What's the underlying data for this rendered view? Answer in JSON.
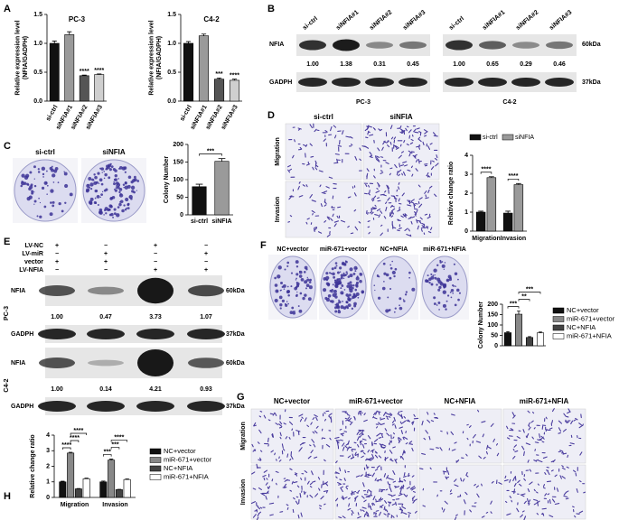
{
  "panel_letters": [
    "A",
    "B",
    "C",
    "D",
    "E",
    "F",
    "G",
    "H"
  ],
  "chart_data": [
    {
      "type": "bar",
      "title": "PC-3",
      "y_label": [
        "Relative expression level",
        "(NFIA/GADPH)"
      ],
      "categories": [
        "si-ctrl",
        "siNFIA#1",
        "siNFIA#2",
        "siNFIA#3"
      ],
      "values": [
        1.0,
        1.15,
        0.44,
        0.46
      ],
      "errors": [
        0.04,
        0.05,
        0.01,
        0.01
      ],
      "colors": [
        "#111111",
        "#9a9a9a",
        "#555555",
        "#cfcfcf"
      ],
      "significance": [
        null,
        null,
        "****",
        "****"
      ],
      "ylim": [
        0,
        1.5
      ],
      "yticks": [
        {
          "value": 0,
          "label": "0.0"
        },
        0.5,
        {
          "value": 1,
          "label": "1.0"
        },
        1.5
      ]
    },
    {
      "type": "bar",
      "title": "C4-2",
      "y_label": [
        "Relative expression level",
        "(NFIA/GADPH)"
      ],
      "categories": [
        "si-ctrl",
        "siNFIA#1",
        "siNFIA#2",
        "siNFIA#3"
      ],
      "values": [
        1.0,
        1.13,
        0.38,
        0.36
      ],
      "errors": [
        0.03,
        0.03,
        0.02,
        0.02
      ],
      "colors": [
        "#111111",
        "#9a9a9a",
        "#555555",
        "#cfcfcf"
      ],
      "significance": [
        null,
        null,
        "***",
        "****"
      ],
      "ylim": [
        0,
        1.5
      ],
      "yticks": [
        {
          "value": 0,
          "label": "0.0"
        },
        0.5,
        {
          "value": 1,
          "label": "1.0"
        },
        1.5
      ]
    },
    {
      "type": "bar",
      "y_label": [
        "Colony Number"
      ],
      "categories": [
        "si-ctrl",
        "siNFIA"
      ],
      "values": [
        80,
        152
      ],
      "errors": [
        7,
        8
      ],
      "colors": [
        "#111111",
        "#9a9a9a"
      ],
      "brackets": [
        {
          "text": "***",
          "bars": [
            0,
            1
          ]
        }
      ],
      "ylim": [
        0,
        200
      ],
      "yticks": [
        0,
        50,
        100,
        150,
        200
      ]
    },
    {
      "type": "grouped_bar",
      "y_label": [
        "Relative change ratio"
      ],
      "categories": [
        "Migration",
        "Invasion"
      ],
      "series": [
        {
          "name": "si-ctrl",
          "color": "#111111",
          "values": [
            1.0,
            0.95
          ],
          "errors": [
            0.05,
            0.1
          ]
        },
        {
          "name": "siNFIA",
          "color": "#9a9a9a",
          "values": [
            2.82,
            2.45
          ],
          "errors": [
            0.05,
            0.06
          ]
        }
      ],
      "brackets": [
        {
          "text": "****",
          "category": 0,
          "bars": [
            0,
            1
          ]
        },
        {
          "text": "****",
          "category": 1,
          "bars": [
            0,
            1
          ]
        }
      ],
      "legend": "top",
      "ylim": [
        0,
        4
      ],
      "yticks": [
        0,
        1,
        2,
        3,
        4
      ]
    },
    {
      "type": "bar",
      "y_label": [
        "Colony Number"
      ],
      "categories": [
        "NC+vector",
        "miR-671+vector",
        "NC+NFIA",
        "miR-671+NFIA"
      ],
      "values": [
        63,
        152,
        40,
        62
      ],
      "errors": [
        5,
        15,
        4,
        4
      ],
      "colors": [
        "#111111",
        "#888888",
        "#444444",
        "#ffffff"
      ],
      "brackets": [
        {
          "text": "***",
          "bars": [
            0,
            1
          ]
        },
        {
          "text": "**",
          "bars": [
            1,
            2
          ]
        },
        {
          "text": "***",
          "bars": [
            1,
            3
          ]
        }
      ],
      "legend": "right",
      "ylim": [
        0,
        200
      ],
      "yticks": [
        0,
        50,
        100,
        150,
        200
      ]
    },
    {
      "type": "grouped_bar",
      "y_label": [
        "Relative change ratio"
      ],
      "categories": [
        "Migration",
        "Invasion"
      ],
      "series": [
        {
          "name": "NC+vector",
          "color": "#111111",
          "values": [
            1.0,
            1.0
          ],
          "errors": [
            0.04,
            0.05
          ]
        },
        {
          "name": "miR-671+vector",
          "color": "#888888",
          "values": [
            2.85,
            2.4
          ],
          "errors": [
            0.05,
            0.06
          ]
        },
        {
          "name": "NC+NFIA",
          "color": "#444444",
          "values": [
            0.55,
            0.5
          ],
          "errors": [
            0.02,
            0.02
          ]
        },
        {
          "name": "miR-671+NFIA",
          "color": "#ffffff",
          "values": [
            1.2,
            1.15
          ],
          "errors": [
            0.04,
            0.04
          ]
        }
      ],
      "brackets": [
        {
          "text": "****",
          "category": 0,
          "bars": [
            0,
            1
          ]
        },
        {
          "text": "****",
          "category": 0,
          "bars": [
            1,
            2
          ]
        },
        {
          "text": "****",
          "category": 0,
          "bars": [
            1,
            3
          ]
        },
        {
          "text": "***",
          "category": 1,
          "bars": [
            0,
            1
          ]
        },
        {
          "text": "***",
          "category": 1,
          "bars": [
            1,
            2
          ]
        },
        {
          "text": "****",
          "category": 1,
          "bars": [
            1,
            3
          ]
        }
      ],
      "legend": "right",
      "ylim": [
        0,
        4
      ],
      "yticks": [
        0,
        1,
        2,
        3,
        4
      ]
    }
  ],
  "blot_b": {
    "protein_labels": [
      "NFIA",
      "GADPH"
    ],
    "size_labels": [
      "60kDa",
      "37kDa"
    ],
    "blots": [
      {
        "cell_line": "PC-3",
        "lanes": [
          "si-ctrl",
          "siNFIA#1",
          "siNFIA#2",
          "siNFIA#3"
        ],
        "ratios": [
          "1.00",
          "1.38",
          "0.31",
          "0.45"
        ]
      },
      {
        "cell_line": "C4-2",
        "lanes": [
          "si-ctrl",
          "siNFIA#1",
          "siNFIA#2",
          "siNFIA#3"
        ],
        "ratios": [
          "1.00",
          "0.65",
          "0.29",
          "0.46"
        ]
      }
    ]
  },
  "plates_c": {
    "labels": [
      "si-ctrl",
      "siNFIA"
    ]
  },
  "images_d": {
    "columns": [
      "si-ctrl",
      "siNFIA"
    ],
    "rows": [
      "Migration",
      "Invasion"
    ]
  },
  "blot_e": {
    "conditions": [
      "LV-NC",
      "LV-miR",
      "vector",
      "LV-NFIA"
    ],
    "signs": [
      [
        "+",
        "−",
        "+",
        "−"
      ],
      [
        "−",
        "+",
        "−",
        "+"
      ],
      [
        "+",
        "+",
        "−",
        "−"
      ],
      [
        "−",
        "−",
        "+",
        "+"
      ]
    ],
    "protein_labels": [
      "NFIA",
      "GADPH"
    ],
    "size_labels": [
      "60kDa",
      "37kDa"
    ],
    "blots": [
      {
        "cell_line": "PC-3",
        "ratios": [
          "1.00",
          "0.47",
          "3.73",
          "1.07"
        ]
      },
      {
        "cell_line": "C4-2",
        "ratios": [
          "1.00",
          "0.14",
          "4.21",
          "0.93"
        ]
      }
    ]
  },
  "plates_f": {
    "labels": [
      "NC+vector",
      "miR-671+vector",
      "NC+NFIA",
      "miR-671+NFIA"
    ]
  },
  "images_g": {
    "columns": [
      "NC+vector",
      "miR-671+vector",
      "NC+NFIA",
      "miR-671+NFIA"
    ],
    "rows": [
      "Migration",
      "Invasion"
    ]
  }
}
